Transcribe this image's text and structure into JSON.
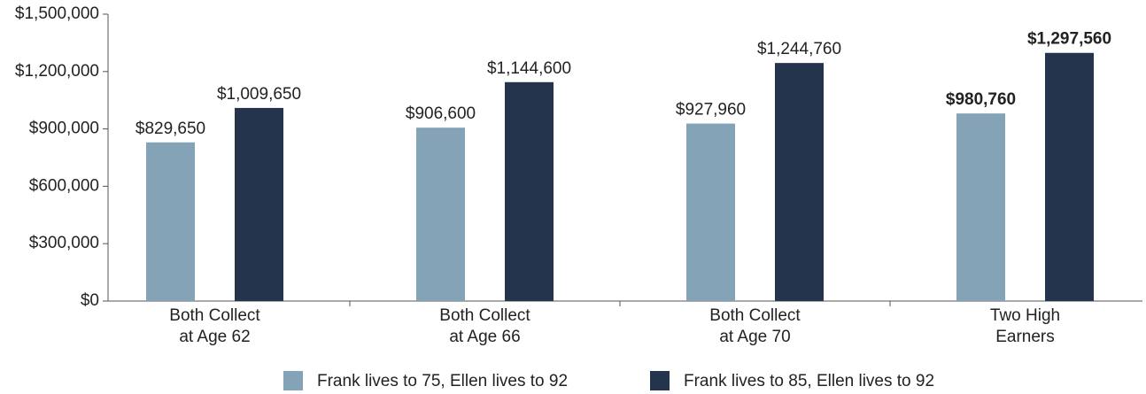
{
  "chart_data": {
    "type": "bar",
    "categories": [
      [
        "Both Collect",
        "at Age 62"
      ],
      [
        "Both Collect",
        "at Age 66"
      ],
      [
        "Both Collect",
        "at Age 70"
      ],
      [
        "Two High",
        "Earners"
      ]
    ],
    "series": [
      {
        "name": "Frank lives to 75, Ellen lives to 92",
        "color": "#84a3b7",
        "values": [
          829650,
          906600,
          927960,
          980760
        ],
        "value_labels": [
          "$829,650",
          "$906,600",
          "$927,960",
          "$980,760"
        ]
      },
      {
        "name": "Frank lives to 85, Ellen lives to 92",
        "color": "#24344d",
        "values": [
          1009650,
          1144600,
          1244760,
          1297560
        ],
        "value_labels": [
          "$1,009,650",
          "$1,144,600",
          "$1,244,760",
          "$1,297,560"
        ]
      }
    ],
    "ylim": [
      0,
      1500000
    ],
    "yticks": [
      {
        "value": 0,
        "label": "$0"
      },
      {
        "value": 300000,
        "label": "$300,000"
      },
      {
        "value": 600000,
        "label": "$600,000"
      },
      {
        "value": 900000,
        "label": "$900,000"
      },
      {
        "value": 1200000,
        "label": "$1,200,000"
      },
      {
        "value": 1500000,
        "label": "$1,500,000"
      }
    ],
    "legend": "bottom"
  }
}
